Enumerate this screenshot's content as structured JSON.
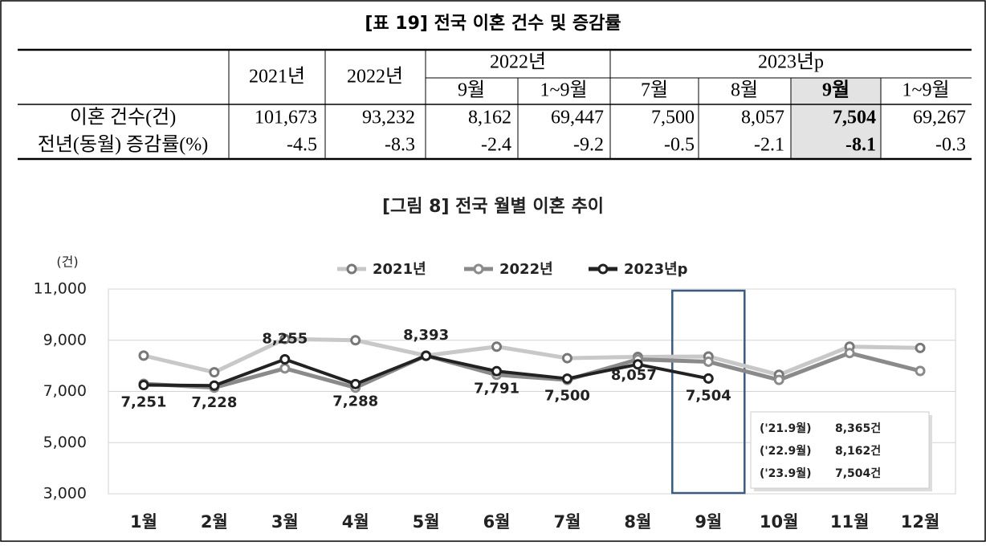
{
  "table": {
    "title": "[표 19] 전국 이혼 건수 및 증감률",
    "header": {
      "col_2021": "2021년",
      "col_2022": "2022년",
      "group_2022": "2022년",
      "group_2023": "2023년p",
      "sub": [
        "9월",
        "1~9월",
        "7월",
        "8월",
        "9월",
        "1~9월"
      ]
    },
    "rows": [
      {
        "label": "이혼 건수(건)",
        "cells": [
          "101,673",
          "93,232",
          "8,162",
          "69,447",
          "7,500",
          "8,057",
          "7,504",
          "69,267"
        ]
      },
      {
        "label": "전년(동월) 증감률(%)",
        "cells": [
          "-4.5",
          "-8.3",
          "-2.4",
          "-9.2",
          "-0.5",
          "-2.1",
          "-8.1",
          "-0.3"
        ]
      }
    ]
  },
  "chart_data": {
    "type": "line",
    "title": "[그림 8] 전국 월별 이혼 추이",
    "y_unit": "(건)",
    "categories": [
      "1월",
      "2월",
      "3월",
      "4월",
      "5월",
      "6월",
      "7월",
      "8월",
      "9월",
      "10월",
      "11월",
      "12월"
    ],
    "series": [
      {
        "name": "2021년",
        "color": "#c8c8c8",
        "marker_color": "#777777",
        "values": [
          8400,
          7750,
          9050,
          9000,
          8400,
          8750,
          8300,
          8350,
          8365,
          7650,
          8750,
          8700
        ]
      },
      {
        "name": "2022년",
        "color": "#8a8a8a",
        "marker_color": "#8a8a8a",
        "values": [
          7300,
          7150,
          7900,
          7150,
          8400,
          7650,
          7450,
          8250,
          8162,
          7450,
          8500,
          7800
        ]
      },
      {
        "name": "2023년p",
        "color": "#222222",
        "marker_color": "#222222",
        "values": [
          7251,
          7228,
          8255,
          7288,
          8393,
          7791,
          7500,
          8057,
          7504,
          null,
          null,
          null
        ],
        "value_labels": [
          "7,251",
          "7,228",
          "8,255",
          "7,288",
          "8,393",
          "7,791",
          "7,500",
          "8,057",
          "7,504",
          null,
          null,
          null
        ]
      }
    ],
    "ylim": [
      3000,
      11000
    ],
    "yticks": [
      {
        "value": 3000,
        "label": "3,000"
      },
      {
        "value": 5000,
        "label": "5,000"
      },
      {
        "value": 7000,
        "label": "7,000"
      },
      {
        "value": 9000,
        "label": "9,000"
      },
      {
        "value": 11000,
        "label": "11,000"
      }
    ],
    "grid": true,
    "annotations": [
      {
        "label": "('21.9월)",
        "text": "8,365건"
      },
      {
        "label": "('22.9월)",
        "text": "8,162건"
      },
      {
        "label": "('23.9월)",
        "text": "7,504건"
      }
    ]
  }
}
